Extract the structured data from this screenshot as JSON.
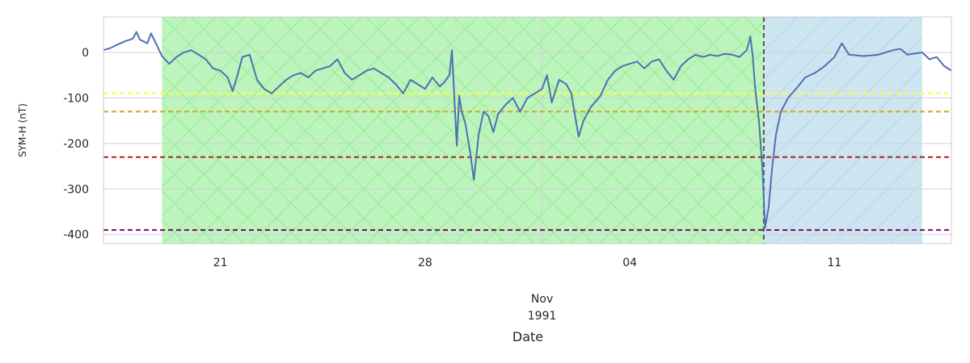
{
  "chart_data": {
    "type": "line",
    "title": "",
    "xlabel": "Date",
    "ylabel": "SYM-H (nT)",
    "ylim": [
      -420,
      78
    ],
    "xlim": [
      "1991-10-17T00:00",
      "1991-11-15T00:00"
    ],
    "x_ticks": [
      {
        "date": "1991-10-21",
        "label": "21"
      },
      {
        "date": "1991-10-28",
        "label": "28"
      },
      {
        "date": "1991-11-04",
        "label": "04"
      },
      {
        "date": "1991-11-11",
        "label": "11"
      }
    ],
    "x_month_label": "Nov",
    "x_year_label": "1991",
    "y_ticks": [
      0,
      -100,
      -200,
      -300,
      -400
    ],
    "grid": true,
    "vertical_grid_dates": [
      "1991-11-01"
    ],
    "colors": {
      "line": "#4c72b0",
      "phase1_fill": "#bdf4bd",
      "phase1_hatch": "#90ee90",
      "phase2_fill": "#cde5f0",
      "phase2_hatch": "#add8e6",
      "onset_line": "#555555",
      "threshold_yellow": "#ffff33",
      "threshold_orange": "#daa520",
      "threshold_red": "#b22222",
      "threshold_purple": "#800080",
      "grid": "#d0d0d0",
      "spine": "#cccccc"
    },
    "shaded_regions": [
      {
        "name": "phase-1",
        "start": "1991-10-19T00:00",
        "end": "1991-11-08T14:00",
        "color": "#bdf4bd",
        "hatch": "cross"
      },
      {
        "name": "phase-2",
        "start": "1991-11-08T14:00",
        "end": "1991-11-14T00:00",
        "color": "#cde5f0",
        "hatch": "diagonal"
      }
    ],
    "vertical_lines": [
      {
        "date": "1991-11-08T14:00",
        "color": "#555555",
        "style": "dashed"
      }
    ],
    "threshold_lines": [
      {
        "value": -90,
        "color": "#ffff33"
      },
      {
        "value": -130,
        "color": "#daa520"
      },
      {
        "value": -230,
        "color": "#b22222"
      },
      {
        "value": -390,
        "color": "#800080"
      }
    ],
    "series": [
      {
        "points": [
          [
            "1991-10-17T00:00",
            5
          ],
          [
            "1991-10-17T06:00",
            10
          ],
          [
            "1991-10-17T12:00",
            18
          ],
          [
            "1991-10-17T18:00",
            25
          ],
          [
            "1991-10-18T00:00",
            30
          ],
          [
            "1991-10-18T03:00",
            45
          ],
          [
            "1991-10-18T06:00",
            28
          ],
          [
            "1991-10-18T12:00",
            20
          ],
          [
            "1991-10-18T15:00",
            42
          ],
          [
            "1991-10-18T20:00",
            15
          ],
          [
            "1991-10-19T00:00",
            -8
          ],
          [
            "1991-10-19T06:00",
            -25
          ],
          [
            "1991-10-19T12:00",
            -10
          ],
          [
            "1991-10-19T18:00",
            0
          ],
          [
            "1991-10-20T00:00",
            5
          ],
          [
            "1991-10-20T06:00",
            -5
          ],
          [
            "1991-10-20T12:00",
            -15
          ],
          [
            "1991-10-20T18:00",
            -35
          ],
          [
            "1991-10-21T00:00",
            -40
          ],
          [
            "1991-10-21T06:00",
            -55
          ],
          [
            "1991-10-21T10:00",
            -85
          ],
          [
            "1991-10-21T14:00",
            -50
          ],
          [
            "1991-10-21T18:00",
            -10
          ],
          [
            "1991-10-22T00:00",
            -5
          ],
          [
            "1991-10-22T06:00",
            -60
          ],
          [
            "1991-10-22T12:00",
            -80
          ],
          [
            "1991-10-22T18:00",
            -90
          ],
          [
            "1991-10-23T00:00",
            -75
          ],
          [
            "1991-10-23T06:00",
            -60
          ],
          [
            "1991-10-23T12:00",
            -50
          ],
          [
            "1991-10-23T18:00",
            -45
          ],
          [
            "1991-10-24T00:00",
            -55
          ],
          [
            "1991-10-24T06:00",
            -40
          ],
          [
            "1991-10-24T12:00",
            -35
          ],
          [
            "1991-10-24T18:00",
            -30
          ],
          [
            "1991-10-25T00:00",
            -15
          ],
          [
            "1991-10-25T06:00",
            -45
          ],
          [
            "1991-10-25T12:00",
            -60
          ],
          [
            "1991-10-25T18:00",
            -50
          ],
          [
            "1991-10-26T00:00",
            -40
          ],
          [
            "1991-10-26T06:00",
            -35
          ],
          [
            "1991-10-26T12:00",
            -45
          ],
          [
            "1991-10-26T18:00",
            -55
          ],
          [
            "1991-10-27T00:00",
            -70
          ],
          [
            "1991-10-27T06:00",
            -90
          ],
          [
            "1991-10-27T12:00",
            -60
          ],
          [
            "1991-10-27T18:00",
            -70
          ],
          [
            "1991-10-28T00:00",
            -80
          ],
          [
            "1991-10-28T06:00",
            -55
          ],
          [
            "1991-10-28T12:00",
            -75
          ],
          [
            "1991-10-28T16:00",
            -65
          ],
          [
            "1991-10-28T20:00",
            -50
          ],
          [
            "1991-10-28T22:00",
            5
          ],
          [
            "1991-10-29T00:00",
            -100
          ],
          [
            "1991-10-29T02:00",
            -205
          ],
          [
            "1991-10-29T04:00",
            -95
          ],
          [
            "1991-10-29T06:00",
            -130
          ],
          [
            "1991-10-29T09:00",
            -155
          ],
          [
            "1991-10-29T13:00",
            -220
          ],
          [
            "1991-10-29T16:00",
            -280
          ],
          [
            "1991-10-29T20:00",
            -180
          ],
          [
            "1991-10-30T00:00",
            -130
          ],
          [
            "1991-10-30T04:00",
            -140
          ],
          [
            "1991-10-30T08:00",
            -175
          ],
          [
            "1991-10-30T12:00",
            -135
          ],
          [
            "1991-10-30T18:00",
            -115
          ],
          [
            "1991-10-31T00:00",
            -100
          ],
          [
            "1991-10-31T06:00",
            -130
          ],
          [
            "1991-10-31T12:00",
            -100
          ],
          [
            "1991-10-31T18:00",
            -90
          ],
          [
            "1991-11-01T00:00",
            -80
          ],
          [
            "1991-11-01T04:00",
            -50
          ],
          [
            "1991-11-01T08:00",
            -110
          ],
          [
            "1991-11-01T14:00",
            -60
          ],
          [
            "1991-11-01T20:00",
            -70
          ],
          [
            "1991-11-02T00:00",
            -90
          ],
          [
            "1991-11-02T06:00",
            -185
          ],
          [
            "1991-11-02T10:00",
            -150
          ],
          [
            "1991-11-02T16:00",
            -120
          ],
          [
            "1991-11-03T00:00",
            -95
          ],
          [
            "1991-11-03T06:00",
            -60
          ],
          [
            "1991-11-03T12:00",
            -40
          ],
          [
            "1991-11-03T18:00",
            -30
          ],
          [
            "1991-11-04T00:00",
            -25
          ],
          [
            "1991-11-04T06:00",
            -20
          ],
          [
            "1991-11-04T12:00",
            -35
          ],
          [
            "1991-11-04T18:00",
            -20
          ],
          [
            "1991-11-05T00:00",
            -15
          ],
          [
            "1991-11-05T06:00",
            -40
          ],
          [
            "1991-11-05T12:00",
            -60
          ],
          [
            "1991-11-05T18:00",
            -30
          ],
          [
            "1991-11-06T00:00",
            -15
          ],
          [
            "1991-11-06T06:00",
            -5
          ],
          [
            "1991-11-06T12:00",
            -10
          ],
          [
            "1991-11-06T18:00",
            -5
          ],
          [
            "1991-11-07T00:00",
            -8
          ],
          [
            "1991-11-07T06:00",
            -3
          ],
          [
            "1991-11-07T12:00",
            -5
          ],
          [
            "1991-11-07T18:00",
            -10
          ],
          [
            "1991-11-08T00:00",
            5
          ],
          [
            "1991-11-08T03:00",
            35
          ],
          [
            "1991-11-08T05:00",
            -10
          ],
          [
            "1991-11-08T07:00",
            -80
          ],
          [
            "1991-11-08T10:00",
            -150
          ],
          [
            "1991-11-08T13:00",
            -260
          ],
          [
            "1991-11-08T15:00",
            -385
          ],
          [
            "1991-11-08T18:00",
            -340
          ],
          [
            "1991-11-08T21:00",
            -250
          ],
          [
            "1991-11-09T00:00",
            -180
          ],
          [
            "1991-11-09T04:00",
            -130
          ],
          [
            "1991-11-09T10:00",
            -100
          ],
          [
            "1991-11-09T18:00",
            -75
          ],
          [
            "1991-11-10T00:00",
            -55
          ],
          [
            "1991-11-10T08:00",
            -45
          ],
          [
            "1991-11-10T16:00",
            -30
          ],
          [
            "1991-11-11T00:00",
            -10
          ],
          [
            "1991-11-11T06:00",
            20
          ],
          [
            "1991-11-11T12:00",
            -5
          ],
          [
            "1991-11-12T00:00",
            -8
          ],
          [
            "1991-11-12T12:00",
            -5
          ],
          [
            "1991-11-13T00:00",
            5
          ],
          [
            "1991-11-13T06:00",
            8
          ],
          [
            "1991-11-13T12:00",
            -5
          ],
          [
            "1991-11-14T00:00",
            0
          ],
          [
            "1991-11-14T06:00",
            -15
          ],
          [
            "1991-11-14T12:00",
            -10
          ],
          [
            "1991-11-14T18:00",
            -30
          ],
          [
            "1991-11-15T00:00",
            -40
          ]
        ]
      }
    ]
  }
}
